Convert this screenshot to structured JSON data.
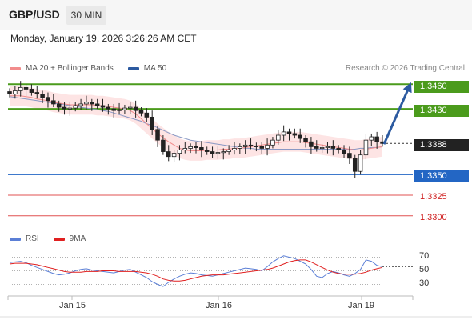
{
  "header": {
    "symbol": "GBP/USD",
    "timeframe": "30 MIN"
  },
  "datetime": "Monday, January 19, 2026 3:26:26 AM CET",
  "legend": {
    "items": [
      {
        "label": "MA 20 + Bollinger Bands",
        "color": "#f28c8c"
      },
      {
        "label": "MA 50",
        "color": "#2c5aa0"
      }
    ],
    "credit": "Research © 2026 Trading Central"
  },
  "levels": {
    "r2": "1.3460",
    "r1": "1.3430",
    "last": "1.3388",
    "s1": "1.3350",
    "s2": "1.3325",
    "s3": "1.3300"
  },
  "rsi_panel": {
    "legend": [
      {
        "label": "RSI",
        "color": "#5b7fd6"
      },
      {
        "label": "9MA",
        "color": "#e02020"
      }
    ],
    "ticks": [
      "70",
      "50",
      "30"
    ]
  },
  "xaxis": {
    "labels": [
      "Jan 15",
      "Jan 16",
      "Jan 19"
    ]
  },
  "colors": {
    "support_resistance_green": "#4b9b1c",
    "support_blue": "#2366c4",
    "support_red": "#e05050",
    "arrow": "#2c5aa0",
    "candle": "#222222",
    "bollinger_fill": "#fde4e4"
  },
  "chart_data": {
    "type": "line",
    "price_series": [
      1.3448,
      1.3452,
      1.3456,
      1.3454,
      1.345,
      1.3448,
      1.3444,
      1.344,
      1.3436,
      1.3432,
      1.343,
      1.3431,
      1.3434,
      1.3436,
      1.3438,
      1.3436,
      1.3434,
      1.3432,
      1.343,
      1.3428,
      1.3429,
      1.3431,
      1.3432,
      1.3428,
      1.3425,
      1.342,
      1.3405,
      1.3392,
      1.3378,
      1.3372,
      1.3376,
      1.338,
      1.3382,
      1.3384,
      1.3383,
      1.338,
      1.3378,
      1.3376,
      1.3377,
      1.3378,
      1.338,
      1.3382,
      1.3384,
      1.3386,
      1.3385,
      1.3384,
      1.3382,
      1.3386,
      1.3392,
      1.3398,
      1.3402,
      1.34,
      1.3398,
      1.3394,
      1.339,
      1.3384,
      1.3382,
      1.3383,
      1.3384,
      1.3382,
      1.338,
      1.3376,
      1.337,
      1.3354,
      1.3374,
      1.3392,
      1.3396,
      1.339,
      1.3388
    ],
    "ma20": [
      1.3446,
      1.3446,
      1.3446,
      1.3445,
      1.3444,
      1.3442,
      1.3441,
      1.344,
      1.3438,
      1.3437,
      1.3436,
      1.3435,
      1.3435,
      1.3435,
      1.3435,
      1.3435,
      1.3434,
      1.3434,
      1.3433,
      1.3432,
      1.3431,
      1.343,
      1.3428,
      1.3424,
      1.3418,
      1.3412,
      1.3406,
      1.34,
      1.3395,
      1.339,
      1.3386,
      1.3382,
      1.338,
      1.3379,
      1.3379,
      1.3379,
      1.338,
      1.338,
      1.338,
      1.3381,
      1.3381,
      1.3382,
      1.3382,
      1.3383,
      1.3384,
      1.3385,
      1.3386,
      1.3387,
      1.3388,
      1.3389,
      1.339,
      1.339,
      1.339,
      1.339,
      1.3389,
      1.3388,
      1.3387,
      1.3386,
      1.3385,
      1.3384,
      1.3383,
      1.3382,
      1.3381,
      1.338,
      1.338,
      1.3381,
      1.3382,
      1.3383,
      1.3384
    ],
    "ma50": [
      1.3445,
      1.3444,
      1.3443,
      1.3442,
      1.3441,
      1.344,
      1.3439,
      1.3438,
      1.3437,
      1.3436,
      1.3435,
      1.3434,
      1.3433,
      1.3432,
      1.3431,
      1.343,
      1.3429,
      1.3428,
      1.3427,
      1.3425,
      1.3423,
      1.3421,
      1.3419,
      1.3417,
      1.3415,
      1.3412,
      1.341,
      1.3407,
      1.3404,
      1.3401,
      1.3398,
      1.3396,
      1.3394,
      1.3392,
      1.3391,
      1.339,
      1.3389,
      1.3388,
      1.3387,
      1.3386,
      1.3385,
      1.3384,
      1.3383,
      1.3382,
      1.3382,
      1.3381,
      1.3381,
      1.3381,
      1.3381,
      1.3381,
      1.3381,
      1.3381,
      1.3381,
      1.3381,
      1.3381,
      1.3381,
      1.3381,
      1.3381,
      1.3381,
      1.3381,
      1.3381,
      1.3381,
      1.3381,
      1.3381,
      1.3382,
      1.3382,
      1.3383,
      1.3383,
      1.3384
    ],
    "band_width": 0.0012,
    "ylim": [
      1.329,
      1.347
    ],
    "levels": [
      1.346,
      1.343,
      1.3388,
      1.335,
      1.3325,
      1.33
    ],
    "arrow_target": 1.346,
    "rsi": [
      62,
      63,
      64,
      62,
      58,
      55,
      52,
      49,
      46,
      44,
      45,
      47,
      50,
      52,
      53,
      51,
      50,
      49,
      48,
      47,
      49,
      51,
      52,
      48,
      44,
      40,
      34,
      30,
      27,
      33,
      38,
      42,
      45,
      47,
      46,
      44,
      43,
      42,
      44,
      46,
      48,
      50,
      52,
      54,
      53,
      52,
      50,
      56,
      63,
      68,
      72,
      70,
      68,
      64,
      60,
      52,
      42,
      40,
      46,
      49,
      47,
      44,
      42,
      46,
      52,
      66,
      64,
      58,
      56
    ],
    "rsi_ma": [
      60,
      61,
      61,
      61,
      60,
      59,
      57,
      55,
      53,
      51,
      49,
      48,
      48,
      48,
      49,
      49,
      49,
      50,
      50,
      50,
      49,
      49,
      49,
      49,
      48,
      47,
      45,
      42,
      38,
      36,
      35,
      35,
      36,
      38,
      40,
      42,
      43,
      44,
      44,
      44,
      45,
      46,
      47,
      48,
      49,
      50,
      51,
      52,
      54,
      57,
      60,
      63,
      65,
      66,
      66,
      63,
      59,
      55,
      51,
      48,
      46,
      45,
      45,
      45,
      46,
      48,
      51,
      53,
      55
    ],
    "rsi_ylim": [
      20,
      80
    ]
  }
}
